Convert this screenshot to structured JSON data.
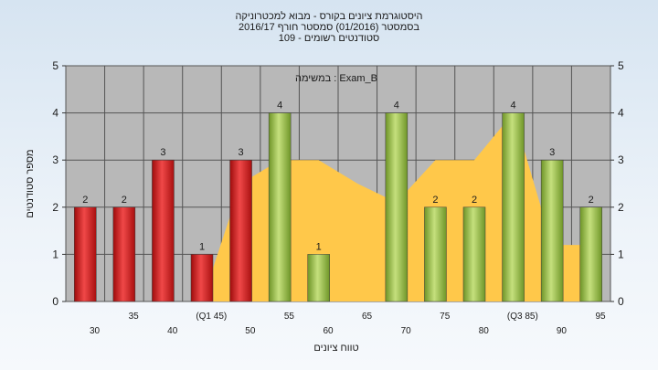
{
  "chart_data": {
    "type": "bar",
    "title_lines": [
      "היסטוגרמת ציונים בקורס - מבוא למכטרוניקה",
      "בסמסטר  (01/2016)  סמסטר חורף 2016/17",
      "סטודנטים רשומים - 109"
    ],
    "annotation": "במשימה : Exam_B",
    "ylabel": "מספר סטודנטים",
    "xlabel": "טווח ציונים",
    "ylim": [
      0,
      5
    ],
    "yticks": [
      0,
      1,
      2,
      3,
      4,
      5
    ],
    "grid": true,
    "categories": [
      "30",
      "35",
      "40",
      "(Q1 45)",
      "50",
      "55",
      "60",
      "65",
      "70",
      "75",
      "80",
      "(Q3 85)",
      "90",
      "95"
    ],
    "values": [
      2,
      2,
      3,
      1,
      3,
      4,
      1,
      0,
      4,
      2,
      2,
      4,
      3,
      2
    ],
    "bar_colors": [
      "red",
      "red",
      "red",
      "red",
      "red",
      "green",
      "green",
      "green",
      "green",
      "green",
      "green",
      "green",
      "green",
      "green"
    ],
    "area_values": [
      0,
      0,
      0,
      0,
      2.5,
      3,
      3,
      2.5,
      2.1,
      3,
      3,
      4,
      1.2,
      1.2
    ],
    "colors": {
      "red_bar": "#d42020",
      "green_bar": "#8db53c",
      "area": "#ffc84a",
      "plot_bg": "#b8b8b8",
      "grid": "#555555"
    }
  }
}
